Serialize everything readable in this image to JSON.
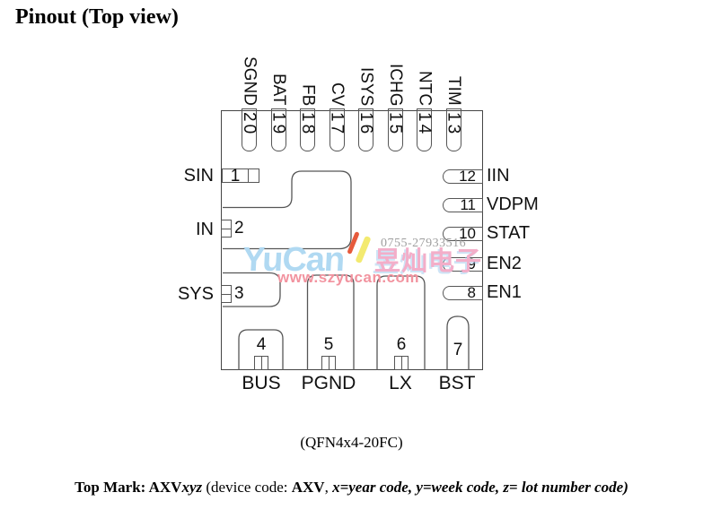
{
  "title": "Pinout (Top view)",
  "caption": "(QFN4x4-20FC)",
  "top_mark": {
    "prefix_bold": "Top Mark: AXV",
    "prefix_italic": "xyz",
    "mid_regular": " (device code: ",
    "code_bold": "AXV",
    "comma": ", ",
    "suffix_italic": "x=year code, y=week code, z= lot number code)"
  },
  "package": {
    "pins": {
      "top": [
        {
          "num": "20",
          "name": "SGND"
        },
        {
          "num": "19",
          "name": "BAT"
        },
        {
          "num": "18",
          "name": "FB"
        },
        {
          "num": "17",
          "name": "CV"
        },
        {
          "num": "16",
          "name": "ISYS"
        },
        {
          "num": "15",
          "name": "ICHG"
        },
        {
          "num": "14",
          "name": "NTC"
        },
        {
          "num": "13",
          "name": "TIM"
        }
      ],
      "left": [
        {
          "num": "1",
          "name": "SIN"
        },
        {
          "num": "2",
          "name": "IN"
        },
        {
          "num": "3",
          "name": "SYS"
        }
      ],
      "right": [
        {
          "num": "12",
          "name": "IIN"
        },
        {
          "num": "11",
          "name": "VDPM"
        },
        {
          "num": "10",
          "name": "STAT"
        },
        {
          "num": "9",
          "name": "EN2"
        },
        {
          "num": "8",
          "name": "EN1"
        }
      ],
      "bottom": [
        {
          "num": "4",
          "name": "BUS"
        },
        {
          "num": "5",
          "name": "PGND"
        },
        {
          "num": "6",
          "name": "LX"
        },
        {
          "num": "7",
          "name": "BST"
        }
      ]
    }
  },
  "watermark": {
    "brand": "YuCan",
    "brand_cjk": "昱灿电子",
    "url": "www.szyucan.com",
    "phone": "0755-27933516",
    "colors": {
      "brand": "#b0d9f2",
      "cjk": "#f3aec9",
      "url": "#f2939f",
      "phone": "#9e9e9e"
    }
  }
}
